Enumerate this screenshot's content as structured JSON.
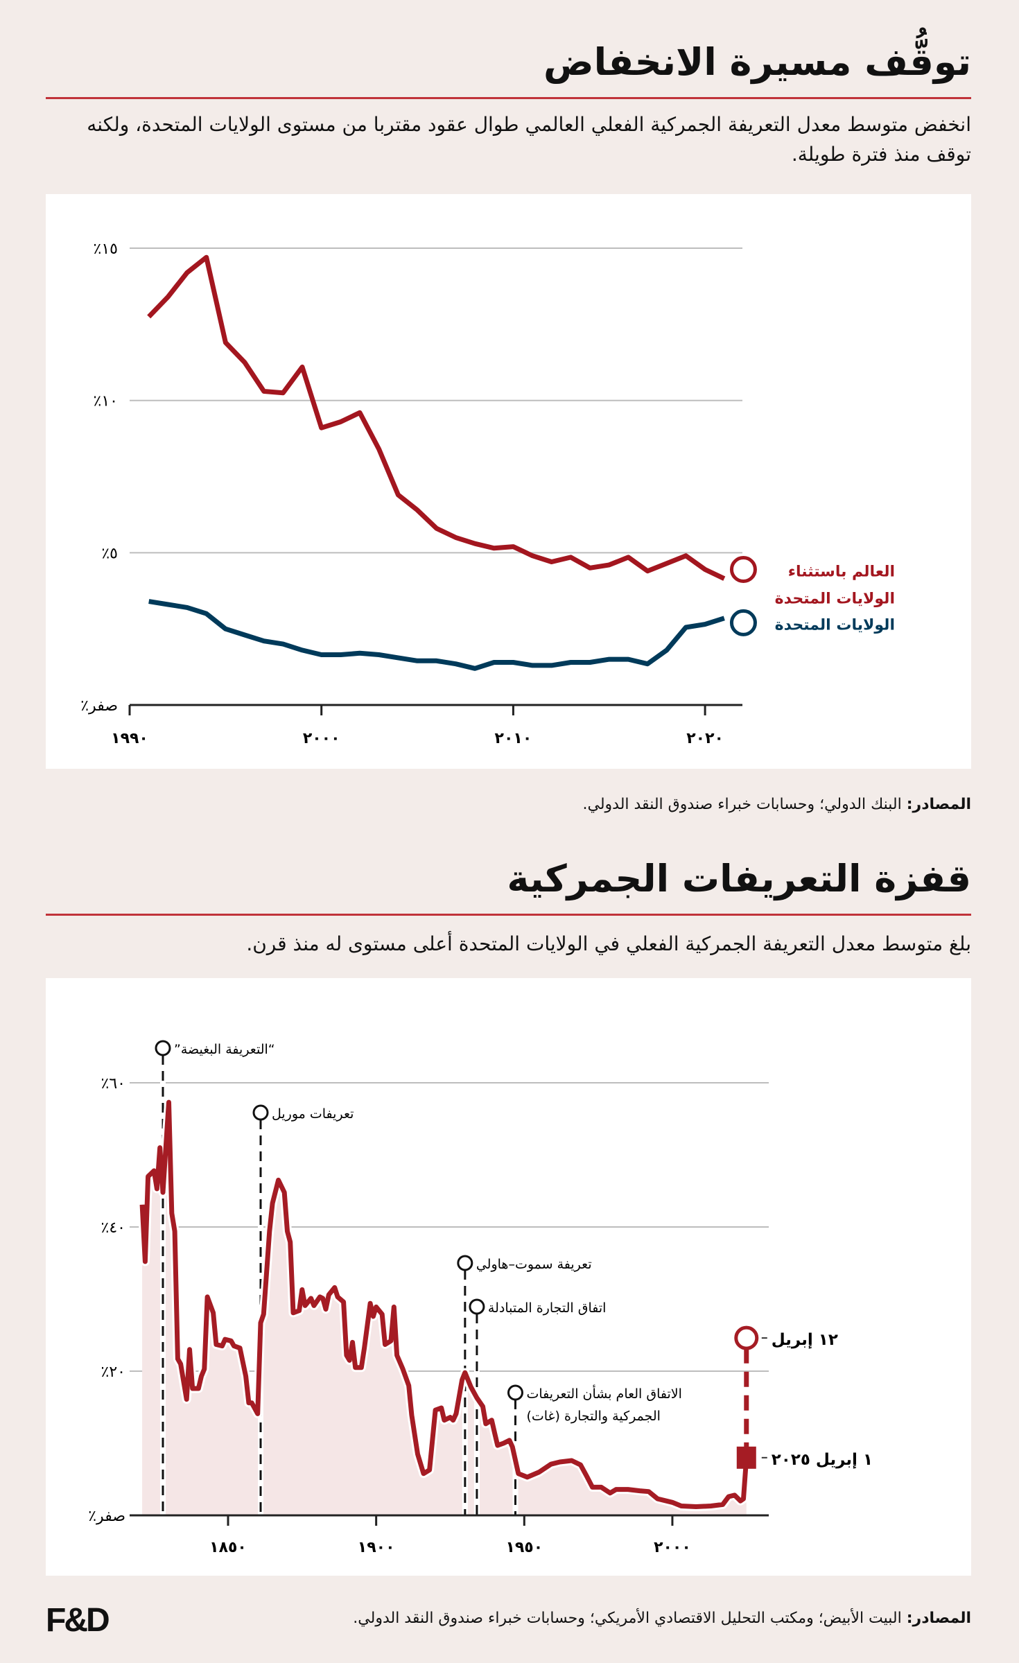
{
  "section1": {
    "title": "توقُّف مسيرة الانخفاض",
    "subtitle": "انخفض متوسط معدل التعريفة الجمركية الفعلي العالمي طوال عقود مقتربا من مستوى الولايات المتحدة، ولكنه توقف منذ فترة طويلة.",
    "source_label": "المصادر:",
    "source_text": " البنك الدولي؛ وحسابات خبراء صندوق النقد الدولي."
  },
  "section2": {
    "title": "قفزة التعريفات الجمركية",
    "subtitle": "بلغ متوسط معدل التعريفة الجمركية الفعلي في الولايات المتحدة أعلى مستوى له منذ قرن.",
    "source_label": "المصادر:",
    "source_text": " البيت الأبيض؛ ومكتب التحليل الاقتصادي الأمريكي؛ وحسابات خبراء صندوق النقد الدولي."
  },
  "footer": {
    "logo": "F&D"
  },
  "colors": {
    "background": "#f3ece9",
    "red": "#a51c24",
    "blue": "#003a5a",
    "rule": "#c0333a",
    "area": "#f5e6e6",
    "grid": "#bdbdbd"
  },
  "chart_data": [
    {
      "type": "line",
      "x_ticks": [
        1990,
        2000,
        2010,
        2020
      ],
      "x_tick_labels": [
        "١٩٩٠",
        "٢٠٠٠",
        "٢٠١٠",
        "٢٠٢٠"
      ],
      "y_ticks": [
        0,
        5,
        10,
        15
      ],
      "y_tick_labels": [
        "صفر٪",
        "٥٪",
        "١٠٪",
        "١٥٪"
      ],
      "xlim": [
        1990,
        2022
      ],
      "ylim": [
        0,
        15
      ],
      "grid": true,
      "legend_placement": "right, at line ends",
      "x": [
        1991,
        1992,
        1993,
        1994,
        1995,
        1996,
        1997,
        1998,
        1999,
        2000,
        2001,
        2002,
        2003,
        2004,
        2005,
        2006,
        2007,
        2008,
        2009,
        2010,
        2011,
        2012,
        2013,
        2014,
        2015,
        2016,
        2017,
        2018,
        2019,
        2020,
        2021,
        2022
      ],
      "series": [
        {
          "name": "العالم باستثناء الولايات المتحدة",
          "label_lines": [
            "العالم باستثناء",
            "الولايات المتحدة"
          ],
          "color": "#a3161f",
          "values": [
            12.75,
            13.4,
            14.2,
            14.7,
            11.9,
            11.25,
            10.3,
            10.25,
            11.1,
            9.1,
            9.3,
            9.6,
            8.4,
            6.9,
            6.4,
            5.8,
            5.5,
            5.3,
            5.15,
            5.2,
            4.9,
            4.7,
            4.85,
            4.5,
            4.6,
            4.85,
            4.4,
            4.65,
            4.9,
            4.45,
            4.15,
            4.45
          ]
        },
        {
          "name": "الولايات المتحدة",
          "label_lines": [
            "الولايات المتحدة"
          ],
          "color": "#003a5a",
          "values": [
            3.4,
            3.3,
            3.2,
            3.0,
            2.5,
            2.3,
            2.1,
            2.0,
            1.8,
            1.65,
            1.65,
            1.7,
            1.65,
            1.55,
            1.45,
            1.45,
            1.35,
            1.2,
            1.4,
            1.4,
            1.3,
            1.3,
            1.4,
            1.4,
            1.5,
            1.5,
            1.35,
            1.8,
            2.55,
            2.65,
            2.85,
            2.7
          ]
        }
      ]
    },
    {
      "type": "area",
      "x_ticks": [
        1850,
        1900,
        1950,
        2000
      ],
      "x_tick_labels": [
        "١٨٥٠",
        "١٩٠٠",
        "١٩٥٠",
        "٢٠٠٠"
      ],
      "y_ticks": [
        0,
        20,
        40,
        60
      ],
      "y_tick_labels": [
        "صفر٪",
        "٢٠٪",
        "٤٠٪",
        "٦٠٪"
      ],
      "xlim": [
        1821,
        2025
      ],
      "ylim": [
        0,
        60
      ],
      "grid": true,
      "x": [
        1821,
        1822,
        1823,
        1825,
        1826,
        1827,
        1828,
        1830,
        1831,
        1832,
        1833,
        1834,
        1836,
        1837,
        1838,
        1840,
        1841,
        1842,
        1843,
        1845,
        1846,
        1848,
        1849,
        1851,
        1852,
        1854,
        1856,
        1857,
        1858,
        1860,
        1861,
        1862,
        1864,
        1865,
        1867,
        1869,
        1870,
        1871,
        1872,
        1874,
        1875,
        1876,
        1878,
        1879,
        1881,
        1882,
        1883,
        1884,
        1886,
        1887,
        1889,
        1890,
        1891,
        1892,
        1893,
        1895,
        1896,
        1898,
        1899,
        1900,
        1902,
        1903,
        1905,
        1906,
        1907,
        1909,
        1911,
        1912,
        1914,
        1916,
        1918,
        1920,
        1922,
        1923,
        1925,
        1926,
        1927,
        1929,
        1930,
        1932,
        1934,
        1936,
        1937,
        1939,
        1940,
        1941,
        1943,
        1945,
        1946,
        1948,
        1951,
        1955,
        1959,
        1962,
        1966,
        1969,
        1971,
        1973,
        1976,
        1979,
        1981,
        1985,
        1989,
        1992,
        1995,
        2000,
        2003,
        2008,
        2013,
        2017,
        2019,
        2021,
        2023,
        2024,
        2025
      ],
      "values": [
        43.1,
        35.2,
        47,
        47.8,
        45.3,
        51,
        44.8,
        57.3,
        41.9,
        39.4,
        21.7,
        21,
        16.1,
        23,
        17.6,
        17.6,
        19.3,
        20.3,
        30.3,
        28.1,
        23.7,
        23.5,
        24.4,
        24.2,
        23.5,
        23.2,
        19.3,
        15.6,
        15.6,
        14.1,
        26.7,
        27.9,
        39.4,
        43.3,
        46.5,
        44.8,
        39.4,
        37.9,
        28.1,
        28.4,
        31.3,
        29.1,
        30.1,
        29.1,
        30.3,
        30.1,
        28.6,
        30.6,
        31.6,
        30.3,
        29.6,
        22.2,
        21.5,
        24,
        20.5,
        20.5,
        23.2,
        29.4,
        27.6,
        28.9,
        27.9,
        23.7,
        24.2,
        28.9,
        22.2,
        20.3,
        18,
        13.9,
        8.5,
        5.8,
        6.3,
        14.6,
        14.9,
        13.2,
        13.6,
        13.2,
        14.1,
        18.8,
        19.8,
        17.8,
        16.3,
        15.1,
        12.7,
        13.2,
        11.4,
        9.7,
        10,
        10.4,
        9.5,
        5.8,
        5.3,
        6,
        7.1,
        7.4,
        7.6,
        7,
        5.5,
        3.9,
        3.9,
        3.1,
        3.6,
        3.6,
        3.4,
        3.3,
        2.3,
        1.8,
        1.3,
        1.2,
        1.3,
        1.5,
        2.6,
        2.8,
        2.0,
        2.3,
        8
      ],
      "color": "#a51c24",
      "annotations": [
        {
          "year": 1828,
          "lines": [
            "“التعريفة البغيضة”"
          ]
        },
        {
          "year": 1861,
          "lines": [
            "تعريفات موريل"
          ]
        },
        {
          "year": 1930,
          "lines": [
            "تعريفة سموت–هاولي"
          ]
        },
        {
          "year": 1934,
          "lines": [
            "اتفاق التجارة المتبادلة"
          ]
        },
        {
          "year": 1947,
          "lines": [
            "الاتفاق العام بشأن التعريفات",
            "الجمركية والتجارة (غات)"
          ]
        }
      ],
      "points": [
        {
          "label": "١ إبريل ٢٠٢٥",
          "year": 2025,
          "value": 8,
          "marker": "square"
        },
        {
          "label": "١٢ إبريل",
          "year": 2025,
          "value": 24.6,
          "marker": "open-circle"
        }
      ]
    }
  ]
}
